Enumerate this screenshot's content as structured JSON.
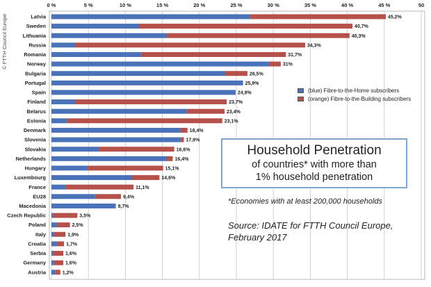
{
  "copyright": "© FTTH Council Europe",
  "legend": [
    {
      "label": "(blue) Fibre-to-the-Home subscribers",
      "color": "#4a72b8"
    },
    {
      "label": "(orange) Fibre-to-the-Building subscribers",
      "color": "#b5504a"
    }
  ],
  "textbox": {
    "title": "Household Penetration",
    "line1": "of countries* with more than",
    "line2": "1% household penetration"
  },
  "footnote": "*Economies with at least 200,000 households",
  "source": {
    "line1": "Source: IDATE for FTTH Council Europe,",
    "line2": "February 2017"
  },
  "chart_data": {
    "type": "bar",
    "orientation": "horizontal",
    "stacked": true,
    "xlim": [
      0,
      50
    ],
    "xticks": [
      "0 %",
      "5 %",
      "10 %",
      "15 %",
      "20 %",
      "25 %",
      "30 %",
      "35 %",
      "40 %",
      "45 %",
      "50"
    ],
    "grid": true,
    "legend_position": "right",
    "categories": [
      "Latvia",
      "Sweden",
      "Lithuania",
      "Russia",
      "Romania",
      "Norway",
      "Bulgaria",
      "Portugal",
      "Spain",
      "Finland",
      "Belarus",
      "Estonia",
      "Denmark",
      "Slovenia",
      "Slovakia",
      "Netherlands",
      "Hungary",
      "Luxembourg",
      "France",
      "EU28",
      "Macedonia",
      "Czech Republic",
      "Poland",
      "Italy",
      "Croatia",
      "Serbia",
      "Germany",
      "Austria"
    ],
    "totals": [
      45.2,
      40.7,
      40.3,
      34.3,
      31.7,
      31,
      26.5,
      25.9,
      24.9,
      23.7,
      23.4,
      23.1,
      18.4,
      17.9,
      16.6,
      16.4,
      15.1,
      14.6,
      11.1,
      9.4,
      8.7,
      3.5,
      2.5,
      1.9,
      1.7,
      1.6,
      1.6,
      1.2
    ],
    "labels": [
      "45,2%",
      "40,7%",
      "40,3%",
      "34,3%",
      "31,7%",
      "31%",
      "26,5%",
      "25,9%",
      "24,9%",
      "23,7%",
      "23,4%",
      "23,1%",
      "18,4%",
      "17,9%",
      "16,6%",
      "16,4%",
      "15,1%",
      "14,6%",
      "11,1%",
      "9,4%",
      "8,7%",
      "3,5%",
      "2,5%",
      "1,9%",
      "1,7%",
      "1,6%",
      "1,6%",
      "1,2%"
    ],
    "series": [
      {
        "name": "(blue) Fibre-to-the-Home subscribers",
        "color": "#4a72b8",
        "values": [
          26.8,
          11.8,
          15.6,
          3.2,
          12.1,
          29.4,
          23.4,
          25.9,
          24.9,
          3.2,
          18.3,
          2.1,
          17.4,
          17.5,
          6.4,
          15.5,
          4.9,
          10.9,
          1.9,
          5.9,
          8.7,
          0.2,
          0.7,
          0.3,
          0.7,
          0.2,
          0.3,
          0.5
        ]
      },
      {
        "name": "(orange) Fibre-to-the-Building subscribers",
        "color": "#b5504a",
        "values": [
          18.4,
          28.9,
          24.7,
          31.1,
          19.6,
          1.6,
          3.1,
          0.0,
          0.0,
          20.5,
          5.1,
          21.0,
          1.0,
          0.4,
          10.2,
          0.9,
          10.2,
          3.7,
          9.2,
          3.5,
          0.0,
          3.3,
          1.8,
          1.6,
          1.0,
          1.4,
          1.3,
          0.7
        ]
      }
    ]
  }
}
